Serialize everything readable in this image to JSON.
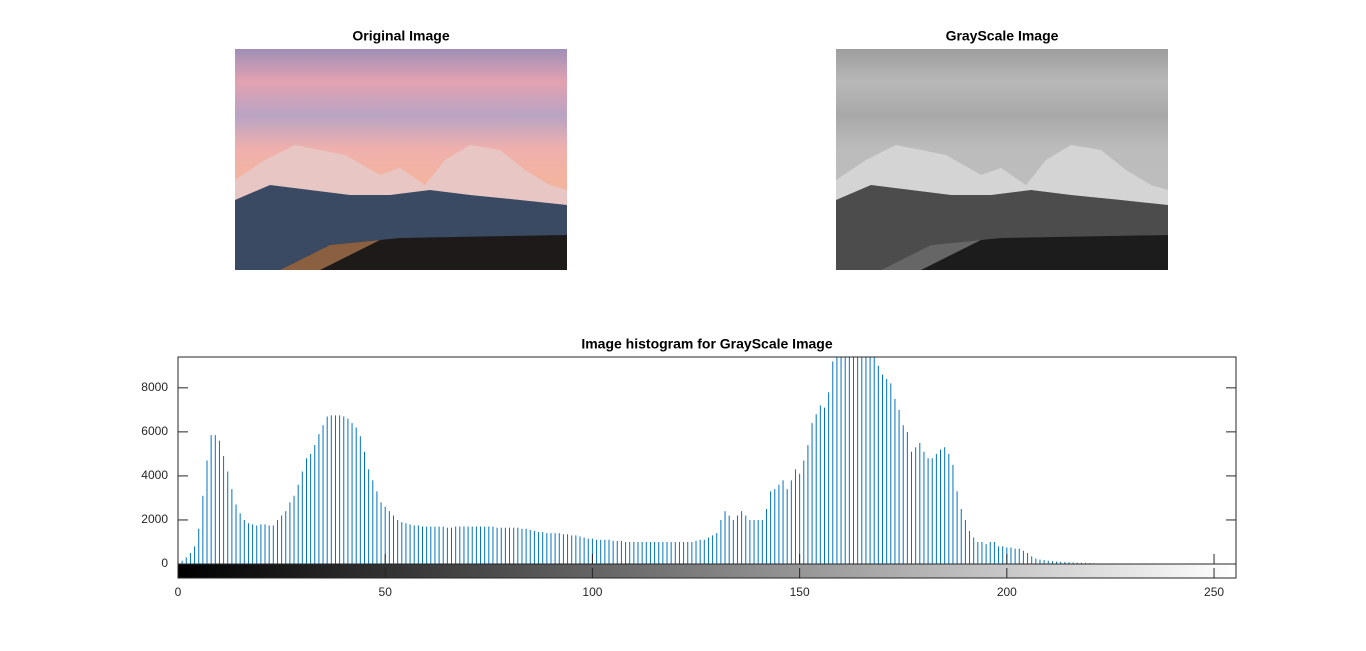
{
  "images": [
    {
      "title": "Original Image"
    },
    {
      "title": "GrayScale Image"
    }
  ],
  "chart_data": {
    "type": "stem",
    "title": "Image histogram for GrayScale Image",
    "color": "#0072bd",
    "x": [
      0,
      1,
      2,
      3,
      4,
      5,
      6,
      7,
      8,
      9,
      10,
      11,
      12,
      13,
      14,
      15,
      16,
      17,
      18,
      19,
      20,
      21,
      22,
      23,
      24,
      25,
      26,
      27,
      28,
      29,
      30,
      31,
      32,
      33,
      34,
      35,
      36,
      37,
      38,
      39,
      40,
      41,
      42,
      43,
      44,
      45,
      46,
      47,
      48,
      49,
      50,
      51,
      52,
      53,
      54,
      55,
      56,
      57,
      58,
      59,
      60,
      61,
      62,
      63,
      64,
      65,
      66,
      67,
      68,
      69,
      70,
      71,
      72,
      73,
      74,
      75,
      76,
      77,
      78,
      79,
      80,
      81,
      82,
      83,
      84,
      85,
      86,
      87,
      88,
      89,
      90,
      91,
      92,
      93,
      94,
      95,
      96,
      97,
      98,
      99,
      100,
      101,
      102,
      103,
      104,
      105,
      106,
      107,
      108,
      109,
      110,
      111,
      112,
      113,
      114,
      115,
      116,
      117,
      118,
      119,
      120,
      121,
      122,
      123,
      124,
      125,
      126,
      127,
      128,
      129,
      130,
      131,
      132,
      133,
      134,
      135,
      136,
      137,
      138,
      139,
      140,
      141,
      142,
      143,
      144,
      145,
      146,
      147,
      148,
      149,
      150,
      151,
      152,
      153,
      154,
      155,
      156,
      157,
      158,
      159,
      160,
      161,
      162,
      163,
      164,
      165,
      166,
      167,
      168,
      169,
      170,
      171,
      172,
      173,
      174,
      175,
      176,
      177,
      178,
      179,
      180,
      181,
      182,
      183,
      184,
      185,
      186,
      187,
      188,
      189,
      190,
      191,
      192,
      193,
      194,
      195,
      196,
      197,
      198,
      199,
      200,
      201,
      202,
      203,
      204,
      205,
      206,
      207,
      208,
      209,
      210,
      211,
      212,
      213,
      214,
      215,
      216,
      217,
      218,
      219,
      220,
      221,
      222,
      223,
      224,
      225,
      226,
      227,
      228,
      229,
      230,
      231,
      232,
      233,
      234,
      235,
      236,
      237,
      238,
      239,
      240,
      241,
      242,
      243,
      244,
      245,
      246,
      247,
      248,
      249,
      250,
      251,
      252,
      253,
      254,
      255
    ],
    "values": [
      50,
      150,
      300,
      500,
      800,
      1600,
      3100,
      4700,
      5850,
      5850,
      5600,
      4900,
      4200,
      3400,
      2700,
      2300,
      2000,
      1850,
      1800,
      1750,
      1800,
      1800,
      1750,
      1750,
      2000,
      2200,
      2400,
      2800,
      3100,
      3600,
      4200,
      4800,
      5000,
      5400,
      5900,
      6300,
      6700,
      6750,
      6750,
      6750,
      6700,
      6600,
      6400,
      6200,
      5800,
      5100,
      4300,
      3800,
      3300,
      2800,
      2600,
      2400,
      2200,
      2000,
      1900,
      1850,
      1800,
      1750,
      1750,
      1700,
      1700,
      1700,
      1700,
      1700,
      1700,
      1650,
      1650,
      1700,
      1700,
      1700,
      1700,
      1700,
      1700,
      1700,
      1700,
      1700,
      1700,
      1650,
      1650,
      1650,
      1650,
      1650,
      1650,
      1600,
      1600,
      1550,
      1500,
      1450,
      1450,
      1400,
      1400,
      1400,
      1400,
      1350,
      1350,
      1300,
      1300,
      1250,
      1200,
      1150,
      1150,
      1100,
      1100,
      1100,
      1100,
      1050,
      1050,
      1050,
      1000,
      1000,
      1000,
      1000,
      1000,
      1000,
      1000,
      1000,
      1000,
      1000,
      1000,
      1000,
      1000,
      1000,
      1000,
      1000,
      1000,
      1050,
      1100,
      1100,
      1200,
      1300,
      1400,
      2000,
      2400,
      2200,
      2000,
      2200,
      2400,
      2200,
      2000,
      2000,
      2000,
      2000,
      2500,
      3300,
      3400,
      3600,
      3800,
      3400,
      3800,
      4300,
      4100,
      4700,
      5400,
      6400,
      6800,
      7200,
      7100,
      7800,
      9200,
      9400,
      9400,
      9400,
      9400,
      9400,
      9400,
      9400,
      9400,
      9400,
      9400,
      9000,
      8600,
      8400,
      8200,
      7500,
      7000,
      6300,
      6000,
      5100,
      5300,
      5500,
      5100,
      4800,
      4800,
      5000,
      5200,
      5300,
      5000,
      4500,
      3300,
      2500,
      2000,
      1500,
      1200,
      1000,
      1000,
      900,
      1000,
      1000,
      800,
      800,
      750,
      750,
      700,
      700,
      600,
      500,
      350,
      250,
      200,
      180,
      150,
      130,
      110,
      100,
      90,
      80,
      70,
      60,
      55,
      50,
      40,
      30,
      20,
      10,
      0,
      0,
      0,
      0,
      0,
      0,
      0,
      0,
      0,
      0,
      0,
      0,
      0,
      0,
      0,
      0,
      0,
      0,
      0,
      0,
      0,
      0,
      0,
      0,
      0,
      0,
      0,
      0,
      0,
      0,
      0,
      0
    ],
    "xlim": [
      0,
      255.3
    ],
    "xticks": [
      0,
      50,
      100,
      150,
      200,
      250
    ],
    "ylim": [
      0,
      9400
    ],
    "yticks": [
      0,
      2000,
      4000,
      6000,
      8000
    ]
  }
}
